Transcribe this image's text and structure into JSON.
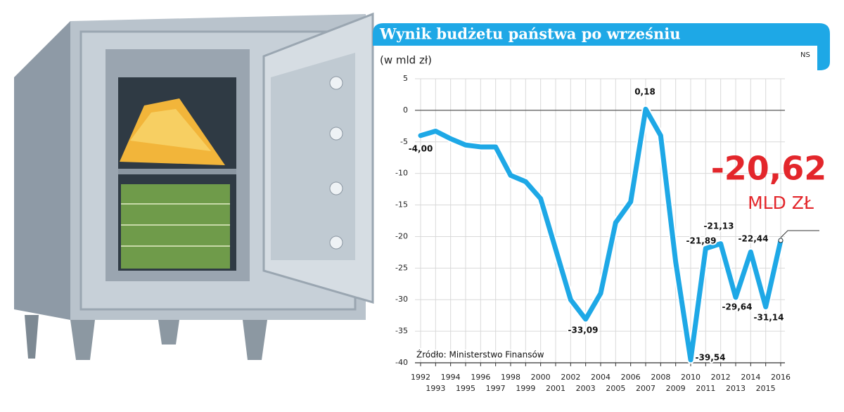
{
  "chart_data": {
    "type": "line",
    "title": "Wynik budżetu państwa po wrześniu",
    "subtitle": "(w mld zł)",
    "credit": "NS",
    "source": "Źródło: Ministerstwo Finansów",
    "unit_label": "MLD ZŁ",
    "categories": [
      "1992",
      "1993",
      "1994",
      "1995",
      "1996",
      "1997",
      "1998",
      "1999",
      "2000",
      "2001",
      "2002",
      "2003",
      "2004",
      "2005",
      "2006",
      "2007",
      "2008",
      "2009",
      "2010",
      "2011",
      "2012",
      "2013",
      "2014",
      "2015",
      "2016"
    ],
    "values": [
      -4.0,
      -3.3,
      -4.5,
      -5.5,
      -5.8,
      -5.8,
      -10.3,
      -11.3,
      -14,
      -22,
      -30,
      -33.09,
      -29,
      -17.8,
      -14.5,
      0.18,
      -4,
      -24,
      -39.54,
      -21.89,
      -21.13,
      -29.64,
      -22.44,
      -31.14,
      -20.62
    ],
    "value_labels": [
      "-4,00",
      null,
      null,
      null,
      null,
      null,
      null,
      null,
      null,
      null,
      null,
      "-33,09",
      null,
      null,
      null,
      "0,18",
      null,
      null,
      "-39,54",
      "-21,89",
      "-21,13",
      "-29,64",
      "-22,44",
      "-31,14",
      "-20,62"
    ],
    "color": "#1ea8e6",
    "highlight_color": "#e3262b",
    "ylim": [
      -40,
      5
    ],
    "yticks": [
      5,
      0,
      -5,
      -10,
      -15,
      -20,
      -25,
      -30,
      -35,
      -40
    ],
    "grid": true
  }
}
